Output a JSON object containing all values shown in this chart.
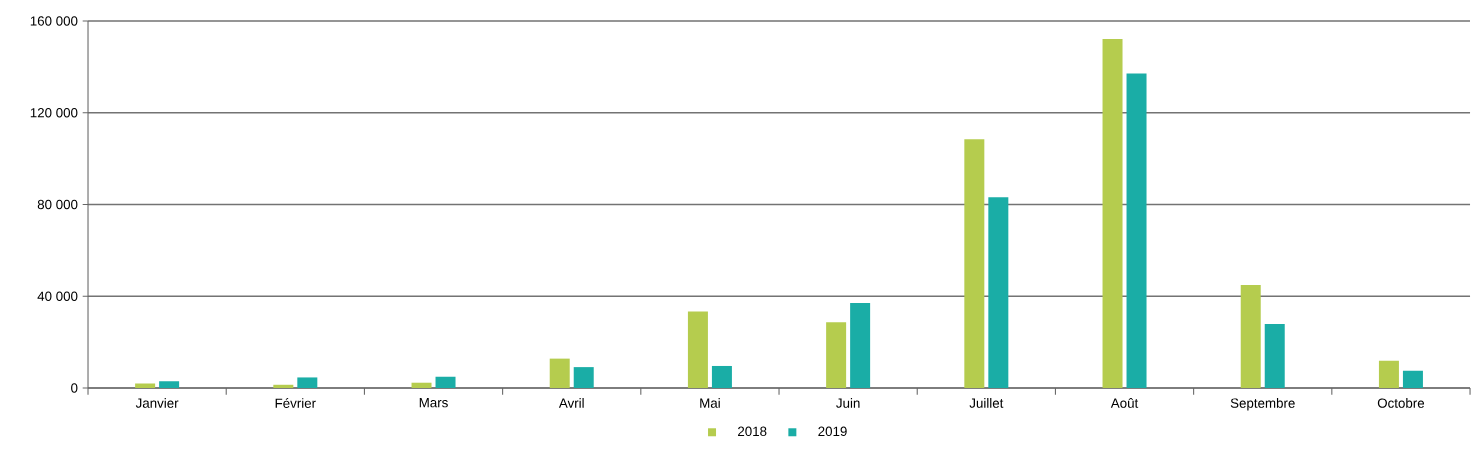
{
  "chart_data": {
    "type": "bar",
    "categories": [
      "Janvier",
      "Février",
      "Mars",
      "Avril",
      "Mai",
      "Juin",
      "Juillet",
      "Août",
      "Septembre",
      "Octobre"
    ],
    "series": [
      {
        "name": "2018",
        "color": "#b5cc4e",
        "values": [
          2000,
          1400,
          2300,
          12800,
          33300,
          28700,
          108400,
          152100,
          44900,
          11900
        ]
      },
      {
        "name": "2019",
        "color": "#1aada6",
        "values": [
          2900,
          4600,
          4900,
          9100,
          9600,
          37100,
          83200,
          137100,
          27900,
          7500
        ]
      }
    ],
    "ylim": [
      0,
      160000
    ],
    "yticks": [
      {
        "value": 0,
        "label": "0"
      },
      {
        "value": 40000,
        "label": "40 000"
      },
      {
        "value": 80000,
        "label": "80 000"
      },
      {
        "value": 120000,
        "label": "120 000"
      },
      {
        "value": 160000,
        "label": "160 000"
      }
    ],
    "grid": "y",
    "legend": "bottom"
  }
}
